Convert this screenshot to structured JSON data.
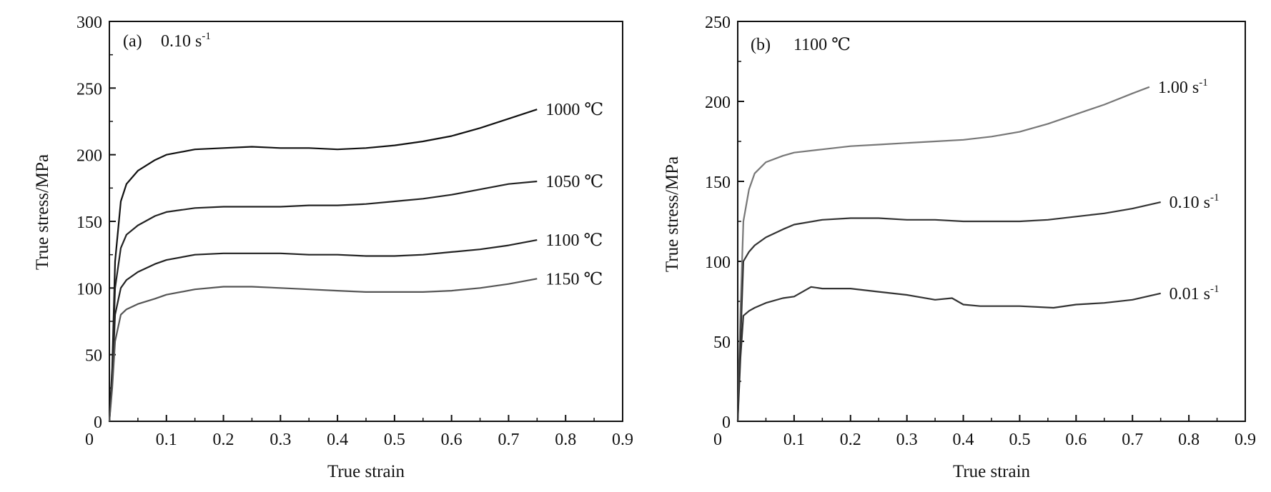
{
  "chart_data": [
    {
      "type": "line",
      "panel_label": "(a)",
      "condition": "0.10 s",
      "condition_sup": "-1",
      "xlabel": "True strain",
      "ylabel": "True stress/MPa",
      "xlim": [
        0,
        0.9
      ],
      "ylim": [
        0,
        300
      ],
      "x_ticks": [
        "0",
        "0.1",
        "0.2",
        "0.3",
        "0.4",
        "0.5",
        "0.6",
        "0.7",
        "0.8",
        "0.9"
      ],
      "y_ticks": [
        "0",
        "50",
        "100",
        "150",
        "200",
        "250",
        "300"
      ],
      "grid": false,
      "series": [
        {
          "name": "1000 ℃",
          "color": "#111111",
          "x": [
            0,
            0.005,
            0.01,
            0.02,
            0.03,
            0.05,
            0.08,
            0.1,
            0.15,
            0.2,
            0.25,
            0.3,
            0.35,
            0.4,
            0.45,
            0.5,
            0.55,
            0.6,
            0.65,
            0.7,
            0.75
          ],
          "y": [
            0,
            40,
            120,
            165,
            178,
            188,
            196,
            200,
            204,
            205,
            206,
            205,
            205,
            204,
            205,
            207,
            210,
            214,
            220,
            227,
            234
          ]
        },
        {
          "name": "1050 ℃",
          "color": "#222222",
          "x": [
            0,
            0.005,
            0.01,
            0.02,
            0.03,
            0.05,
            0.08,
            0.1,
            0.15,
            0.2,
            0.25,
            0.3,
            0.35,
            0.4,
            0.45,
            0.5,
            0.55,
            0.6,
            0.65,
            0.7,
            0.75
          ],
          "y": [
            0,
            35,
            100,
            130,
            140,
            147,
            154,
            157,
            160,
            161,
            161,
            161,
            162,
            162,
            163,
            165,
            167,
            170,
            174,
            178,
            180
          ]
        },
        {
          "name": "1100 ℃",
          "color": "#222222",
          "x": [
            0,
            0.005,
            0.01,
            0.02,
            0.03,
            0.05,
            0.08,
            0.1,
            0.15,
            0.2,
            0.25,
            0.3,
            0.35,
            0.4,
            0.45,
            0.5,
            0.55,
            0.6,
            0.65,
            0.7,
            0.75
          ],
          "y": [
            0,
            30,
            80,
            100,
            106,
            112,
            118,
            121,
            125,
            126,
            126,
            126,
            125,
            125,
            124,
            124,
            125,
            127,
            129,
            132,
            136
          ]
        },
        {
          "name": "1150 ℃",
          "color": "#555555",
          "x": [
            0,
            0.005,
            0.01,
            0.02,
            0.03,
            0.05,
            0.08,
            0.1,
            0.15,
            0.2,
            0.25,
            0.3,
            0.35,
            0.4,
            0.45,
            0.5,
            0.55,
            0.6,
            0.65,
            0.7,
            0.75
          ],
          "y": [
            0,
            25,
            60,
            80,
            84,
            88,
            92,
            95,
            99,
            101,
            101,
            100,
            99,
            98,
            97,
            97,
            97,
            98,
            100,
            103,
            107
          ]
        }
      ]
    },
    {
      "type": "line",
      "panel_label": "(b)",
      "condition": "1100 ℃",
      "xlabel": "True strain",
      "ylabel": "True stress/MPa",
      "xlim": [
        0,
        0.9
      ],
      "ylim": [
        0,
        250
      ],
      "x_ticks": [
        "0",
        "0.1",
        "0.2",
        "0.3",
        "0.4",
        "0.5",
        "0.6",
        "0.7",
        "0.8",
        "0.9"
      ],
      "y_ticks": [
        "0",
        "50",
        "100",
        "150",
        "200",
        "250"
      ],
      "grid": false,
      "series": [
        {
          "name": "1.00 s",
          "name_sup": "-1",
          "color": "#777777",
          "x": [
            0,
            0.005,
            0.01,
            0.02,
            0.03,
            0.05,
            0.08,
            0.1,
            0.15,
            0.2,
            0.25,
            0.3,
            0.35,
            0.4,
            0.45,
            0.5,
            0.55,
            0.6,
            0.65,
            0.7,
            0.73
          ],
          "y": [
            0,
            70,
            125,
            145,
            155,
            162,
            166,
            168,
            170,
            172,
            173,
            174,
            175,
            176,
            178,
            181,
            186,
            192,
            198,
            205,
            209
          ]
        },
        {
          "name": "0.10 s",
          "name_sup": "-1",
          "color": "#333333",
          "x": [
            0,
            0.005,
            0.01,
            0.02,
            0.03,
            0.05,
            0.08,
            0.1,
            0.15,
            0.2,
            0.25,
            0.3,
            0.35,
            0.4,
            0.45,
            0.5,
            0.55,
            0.6,
            0.65,
            0.7,
            0.75
          ],
          "y": [
            0,
            50,
            100,
            106,
            110,
            115,
            120,
            123,
            126,
            127,
            127,
            126,
            126,
            125,
            125,
            125,
            126,
            128,
            130,
            133,
            137
          ]
        },
        {
          "name": "0.01 s",
          "name_sup": "-1",
          "color": "#333333",
          "x": [
            0,
            0.005,
            0.01,
            0.02,
            0.03,
            0.05,
            0.08,
            0.1,
            0.13,
            0.15,
            0.2,
            0.25,
            0.3,
            0.35,
            0.38,
            0.4,
            0.43,
            0.5,
            0.56,
            0.6,
            0.65,
            0.7,
            0.75
          ],
          "y": [
            0,
            40,
            66,
            69,
            71,
            74,
            77,
            78,
            84,
            83,
            83,
            81,
            79,
            76,
            77,
            73,
            72,
            72,
            71,
            73,
            74,
            76,
            80
          ]
        }
      ]
    }
  ]
}
